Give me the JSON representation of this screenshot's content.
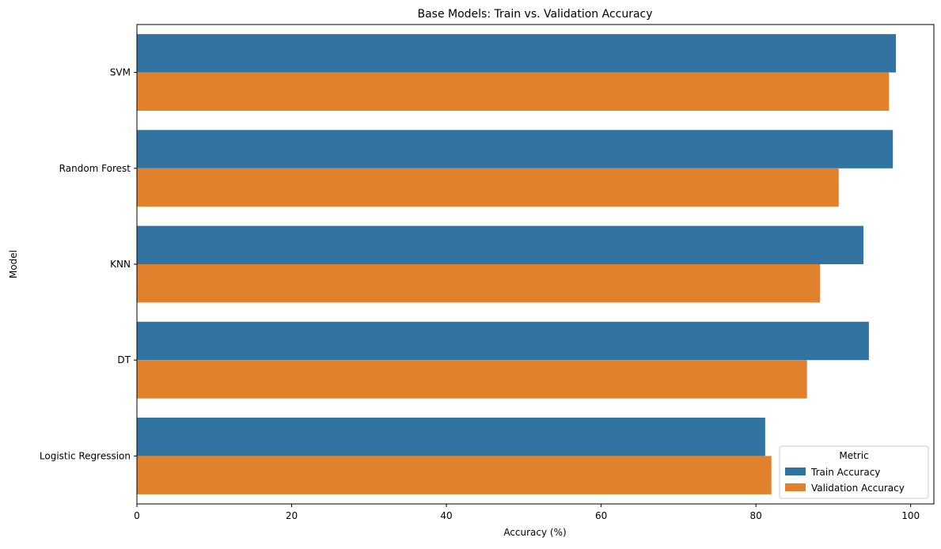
{
  "chart_data": {
    "type": "bar",
    "orientation": "horizontal",
    "title": "Base Models: Train vs. Validation Accuracy",
    "xlabel": "Accuracy (%)",
    "ylabel": "Model",
    "xlim": [
      0,
      103
    ],
    "xticks": [
      0,
      20,
      40,
      60,
      80,
      100
    ],
    "categories": [
      "SVM",
      "Random Forest",
      "KNN",
      "DT",
      "Logistic Regression"
    ],
    "series": [
      {
        "name": "Train Accuracy",
        "color": "#3274a1",
        "values": [
          98.1,
          97.7,
          93.9,
          94.6,
          81.2
        ]
      },
      {
        "name": "Validation Accuracy",
        "color": "#e1812c",
        "values": [
          97.2,
          90.7,
          88.3,
          86.6,
          82.0
        ]
      }
    ],
    "grid": false,
    "legend": {
      "title": "Metric",
      "placement": "lower-right"
    }
  }
}
